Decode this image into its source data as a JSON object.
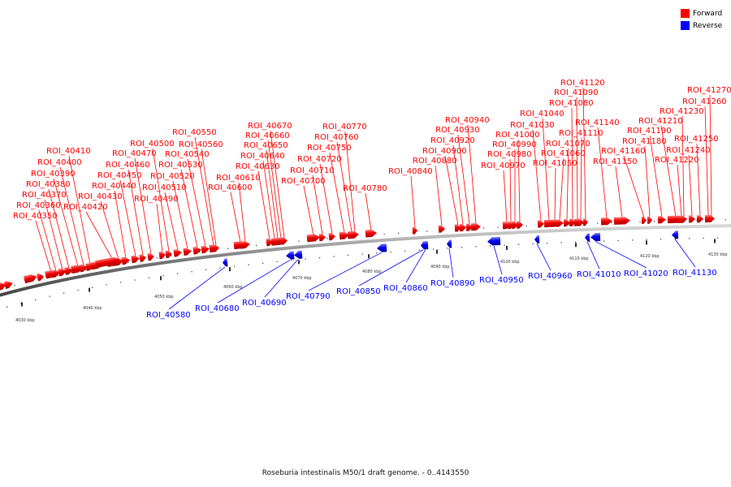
{
  "legend": {
    "forward_label": "Forward",
    "reverse_label": "Reverse",
    "forward_color": "#ff0000",
    "reverse_color": "#0000ff"
  },
  "caption": "Roseburia intestinalis M50/1 draft genome. - 0..4143550",
  "axis": {
    "tick_labels": [
      "4030 kbp",
      "4040 kbp",
      "4050 kbp",
      "4060 kbp",
      "4070 kbp",
      "4080 kbp",
      "4090 kbp",
      "4100 kbp",
      "4110 kbp",
      "4120 kbp",
      "4130 kbp"
    ]
  },
  "forward_features": [
    "ROI_40350",
    "ROI_40360",
    "ROI_40370",
    "ROI_40380",
    "ROI_40390",
    "ROI_40400",
    "ROI_40410",
    "ROI_40420",
    "ROI_40430",
    "ROI_40440",
    "ROI_40450",
    "ROI_40460",
    "ROI_40470",
    "ROI_40490",
    "ROI_40500",
    "ROI_40510",
    "ROI_40520",
    "ROI_40530",
    "ROI_40540",
    "ROI_40550",
    "ROI_40560",
    "ROI_40600",
    "ROI_40610",
    "ROI_40630",
    "ROI_40640",
    "ROI_40650",
    "ROI_40660",
    "ROI_40670",
    "ROI_40700",
    "ROI_40710",
    "ROI_40720",
    "ROI_40750",
    "ROI_40760",
    "ROI_40770",
    "ROI_40780",
    "ROI_40840",
    "ROI_40880",
    "ROI_40900",
    "ROI_40920",
    "ROI_40930",
    "ROI_40940",
    "ROI_40970",
    "ROI_40980",
    "ROI_40990",
    "ROI_41000",
    "ROI_41030",
    "ROI_41040",
    "ROI_41050",
    "ROI_41060",
    "ROI_41070",
    "ROI_41080",
    "ROI_41090",
    "ROI_41110",
    "ROI_41120",
    "ROI_41140",
    "ROI_41150",
    "ROI_41160",
    "ROI_41180",
    "ROI_41190",
    "ROI_41210",
    "ROI_41220",
    "ROI_41230",
    "ROI_41240",
    "ROI_41250",
    "ROI_41260",
    "ROI_41270"
  ],
  "reverse_features": [
    "ROI_40580",
    "ROI_40680",
    "ROI_40690",
    "ROI_40790",
    "ROI_40850",
    "ROI_40860",
    "ROI_40890",
    "ROI_40950",
    "ROI_40960",
    "ROI_41010",
    "ROI_41020",
    "ROI_41130"
  ]
}
